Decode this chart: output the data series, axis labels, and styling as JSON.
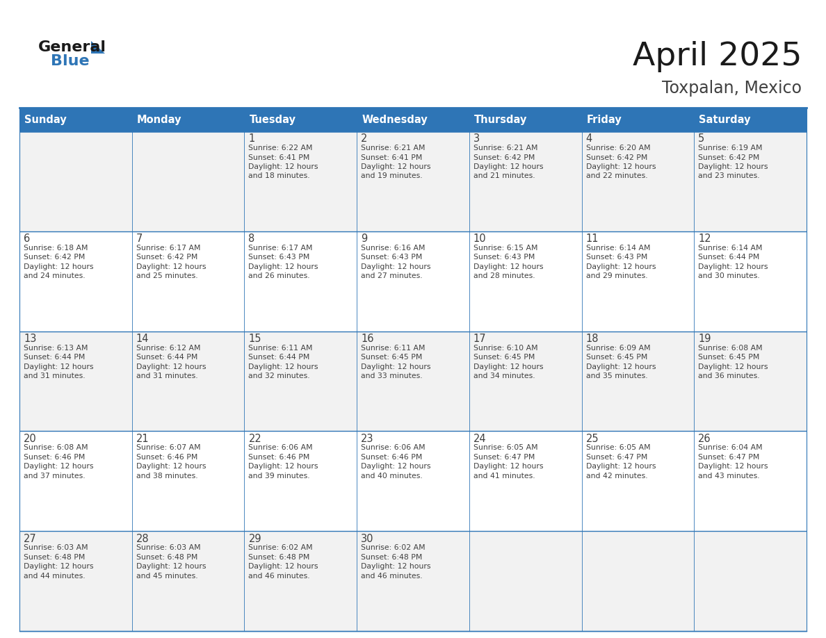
{
  "title": "April 2025",
  "subtitle": "Toxpalan, Mexico",
  "header_bg": "#2E75B6",
  "header_text_color": "#FFFFFF",
  "header_days": [
    "Sunday",
    "Monday",
    "Tuesday",
    "Wednesday",
    "Thursday",
    "Friday",
    "Saturday"
  ],
  "cell_bg_odd": "#F2F2F2",
  "cell_bg_even": "#FFFFFF",
  "cell_text_color": "#404040",
  "day_num_color": "#404040",
  "grid_line_color": "#2E75B6",
  "title_color": "#1A1A1A",
  "subtitle_color": "#404040",
  "logo_general_color": "#1A1A1A",
  "logo_blue_color": "#2E75B6",
  "weeks": [
    [
      {
        "day": "",
        "info": ""
      },
      {
        "day": "",
        "info": ""
      },
      {
        "day": "1",
        "info": "Sunrise: 6:22 AM\nSunset: 6:41 PM\nDaylight: 12 hours\nand 18 minutes."
      },
      {
        "day": "2",
        "info": "Sunrise: 6:21 AM\nSunset: 6:41 PM\nDaylight: 12 hours\nand 19 minutes."
      },
      {
        "day": "3",
        "info": "Sunrise: 6:21 AM\nSunset: 6:42 PM\nDaylight: 12 hours\nand 21 minutes."
      },
      {
        "day": "4",
        "info": "Sunrise: 6:20 AM\nSunset: 6:42 PM\nDaylight: 12 hours\nand 22 minutes."
      },
      {
        "day": "5",
        "info": "Sunrise: 6:19 AM\nSunset: 6:42 PM\nDaylight: 12 hours\nand 23 minutes."
      }
    ],
    [
      {
        "day": "6",
        "info": "Sunrise: 6:18 AM\nSunset: 6:42 PM\nDaylight: 12 hours\nand 24 minutes."
      },
      {
        "day": "7",
        "info": "Sunrise: 6:17 AM\nSunset: 6:42 PM\nDaylight: 12 hours\nand 25 minutes."
      },
      {
        "day": "8",
        "info": "Sunrise: 6:17 AM\nSunset: 6:43 PM\nDaylight: 12 hours\nand 26 minutes."
      },
      {
        "day": "9",
        "info": "Sunrise: 6:16 AM\nSunset: 6:43 PM\nDaylight: 12 hours\nand 27 minutes."
      },
      {
        "day": "10",
        "info": "Sunrise: 6:15 AM\nSunset: 6:43 PM\nDaylight: 12 hours\nand 28 minutes."
      },
      {
        "day": "11",
        "info": "Sunrise: 6:14 AM\nSunset: 6:43 PM\nDaylight: 12 hours\nand 29 minutes."
      },
      {
        "day": "12",
        "info": "Sunrise: 6:14 AM\nSunset: 6:44 PM\nDaylight: 12 hours\nand 30 minutes."
      }
    ],
    [
      {
        "day": "13",
        "info": "Sunrise: 6:13 AM\nSunset: 6:44 PM\nDaylight: 12 hours\nand 31 minutes."
      },
      {
        "day": "14",
        "info": "Sunrise: 6:12 AM\nSunset: 6:44 PM\nDaylight: 12 hours\nand 31 minutes."
      },
      {
        "day": "15",
        "info": "Sunrise: 6:11 AM\nSunset: 6:44 PM\nDaylight: 12 hours\nand 32 minutes."
      },
      {
        "day": "16",
        "info": "Sunrise: 6:11 AM\nSunset: 6:45 PM\nDaylight: 12 hours\nand 33 minutes."
      },
      {
        "day": "17",
        "info": "Sunrise: 6:10 AM\nSunset: 6:45 PM\nDaylight: 12 hours\nand 34 minutes."
      },
      {
        "day": "18",
        "info": "Sunrise: 6:09 AM\nSunset: 6:45 PM\nDaylight: 12 hours\nand 35 minutes."
      },
      {
        "day": "19",
        "info": "Sunrise: 6:08 AM\nSunset: 6:45 PM\nDaylight: 12 hours\nand 36 minutes."
      }
    ],
    [
      {
        "day": "20",
        "info": "Sunrise: 6:08 AM\nSunset: 6:46 PM\nDaylight: 12 hours\nand 37 minutes."
      },
      {
        "day": "21",
        "info": "Sunrise: 6:07 AM\nSunset: 6:46 PM\nDaylight: 12 hours\nand 38 minutes."
      },
      {
        "day": "22",
        "info": "Sunrise: 6:06 AM\nSunset: 6:46 PM\nDaylight: 12 hours\nand 39 minutes."
      },
      {
        "day": "23",
        "info": "Sunrise: 6:06 AM\nSunset: 6:46 PM\nDaylight: 12 hours\nand 40 minutes."
      },
      {
        "day": "24",
        "info": "Sunrise: 6:05 AM\nSunset: 6:47 PM\nDaylight: 12 hours\nand 41 minutes."
      },
      {
        "day": "25",
        "info": "Sunrise: 6:05 AM\nSunset: 6:47 PM\nDaylight: 12 hours\nand 42 minutes."
      },
      {
        "day": "26",
        "info": "Sunrise: 6:04 AM\nSunset: 6:47 PM\nDaylight: 12 hours\nand 43 minutes."
      }
    ],
    [
      {
        "day": "27",
        "info": "Sunrise: 6:03 AM\nSunset: 6:48 PM\nDaylight: 12 hours\nand 44 minutes."
      },
      {
        "day": "28",
        "info": "Sunrise: 6:03 AM\nSunset: 6:48 PM\nDaylight: 12 hours\nand 45 minutes."
      },
      {
        "day": "29",
        "info": "Sunrise: 6:02 AM\nSunset: 6:48 PM\nDaylight: 12 hours\nand 46 minutes."
      },
      {
        "day": "30",
        "info": "Sunrise: 6:02 AM\nSunset: 6:48 PM\nDaylight: 12 hours\nand 46 minutes."
      },
      {
        "day": "",
        "info": ""
      },
      {
        "day": "",
        "info": ""
      },
      {
        "day": "",
        "info": ""
      }
    ]
  ]
}
